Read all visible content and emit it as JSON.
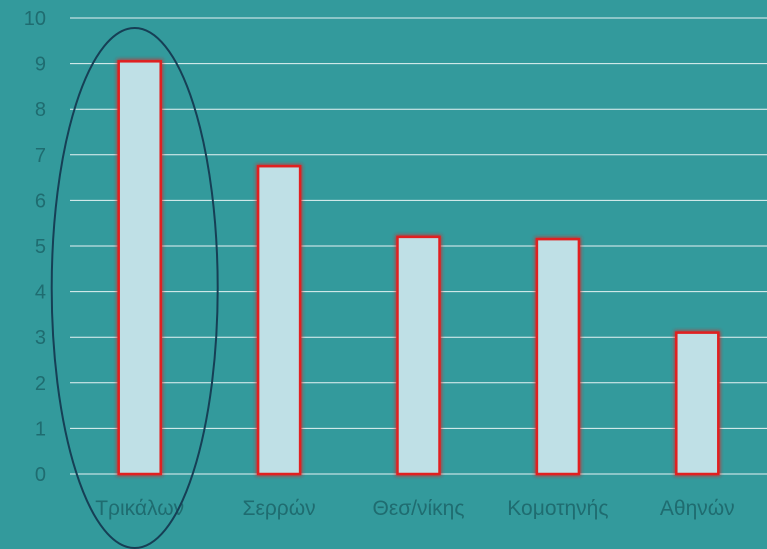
{
  "colors": {
    "background": "#339A9C",
    "gridline": "#E6F3F3",
    "bar_fill": "#BFE0E6",
    "bar_stroke": "#E02020",
    "tick_text": "#1F6C70",
    "highlight_ellipse": "#163F55"
  },
  "chart_data": {
    "type": "bar",
    "title": "",
    "xlabel": "",
    "ylabel": "",
    "categories": [
      "Τρικάλων",
      "Σερρών",
      "Θεσ/νίκης",
      "Κομοτηνής",
      "Αθηνών"
    ],
    "values": [
      9.05,
      6.75,
      5.2,
      5.15,
      3.1
    ],
    "ylim": [
      0,
      10
    ],
    "yticks": [
      "0",
      "1",
      "2",
      "3",
      "4",
      "5",
      "6",
      "7",
      "8",
      "9",
      "10"
    ],
    "grid": true,
    "legend": "none",
    "highlighted_category": "Τρικάλων"
  }
}
